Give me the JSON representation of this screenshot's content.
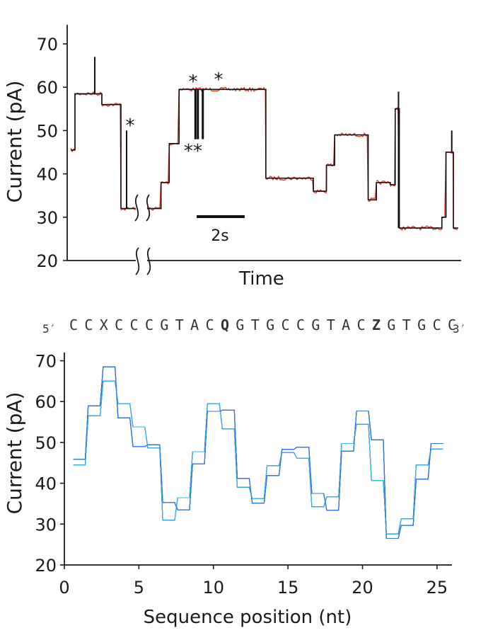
{
  "chart_data": [
    {
      "type": "line",
      "ylabel": "Current (pA)",
      "xlabel": "Time",
      "ylim": [
        20,
        75
      ],
      "yticks": [
        20,
        30,
        40,
        50,
        60,
        70
      ],
      "scale_bar_label": "2s",
      "star_symbol": "*",
      "double_star_symbol": "**",
      "colors": {
        "raw": "#e8392b",
        "fit": "#111111"
      },
      "series": [
        {
          "levels": [
            {
              "t0": 0.0,
              "t1": 0.6,
              "y": 45.5
            },
            {
              "t0": 0.6,
              "t1": 4.4,
              "y": 58.5
            },
            {
              "t0": 4.4,
              "t1": 7.1,
              "y": 56.0
            },
            {
              "t0": 7.1,
              "t1": 9.2,
              "y": 32.0
            },
            {
              "t0": 10.3,
              "t1": 12.0,
              "y": 32.0
            },
            {
              "t0": 12.0,
              "t1": 13.0,
              "y": 38.0
            },
            {
              "t0": 13.0,
              "t1": 14.2,
              "y": 47.0
            },
            {
              "t0": 14.2,
              "t1": 24.8,
              "y": 59.5
            },
            {
              "t0": 24.8,
              "t1": 30.6,
              "y": 39.0
            },
            {
              "t0": 30.6,
              "t1": 32.2,
              "y": 36.0
            },
            {
              "t0": 32.2,
              "t1": 33.2,
              "y": 42.0
            },
            {
              "t0": 33.2,
              "t1": 37.3,
              "y": 49.0
            },
            {
              "t0": 37.3,
              "t1": 38.3,
              "y": 34.0
            },
            {
              "t0": 38.3,
              "t1": 40.0,
              "y": 38.0
            },
            {
              "t0": 40.0,
              "t1": 40.6,
              "y": 37.5
            },
            {
              "t0": 40.6,
              "t1": 41.1,
              "y": 55.0
            },
            {
              "t0": 41.1,
              "t1": 46.3,
              "y": 27.5
            },
            {
              "t0": 46.3,
              "t1": 46.8,
              "y": 30.0
            },
            {
              "t0": 46.8,
              "t1": 47.7,
              "y": 45.0
            },
            {
              "t0": 47.7,
              "t1": 48.3,
              "y": 27.5
            }
          ],
          "spikes": [
            {
              "t": 3.4,
              "y0": 58.5,
              "y1": 67.0
            },
            {
              "t": 7.9,
              "y0": 32.0,
              "y1": 50.0
            },
            {
              "t": 41.0,
              "y0": 27.5,
              "y1": 59.0
            },
            {
              "t": 47.5,
              "y0": 45.0,
              "y1": 50.0
            }
          ],
          "dips": [
            {
              "t": 16.2,
              "y0": 59.5,
              "y1": 48.0
            },
            {
              "t": 16.5,
              "y0": 59.5,
              "y1": 48.0
            },
            {
              "t": 17.1,
              "y0": 59.5,
              "y1": 48.0
            }
          ]
        }
      ]
    },
    {
      "type": "line",
      "ylabel": "Current (pA)",
      "xlabel": "Sequence position (nt)",
      "xlim": [
        0,
        26
      ],
      "ylim": [
        20,
        72
      ],
      "xticks": [
        0,
        5,
        10,
        15,
        20,
        25
      ],
      "yticks": [
        20,
        30,
        40,
        50,
        60,
        70
      ],
      "sequence": {
        "five_prime": "5′",
        "three_prime": "3′",
        "bases": [
          "C",
          "C",
          "X",
          "C",
          "C",
          "C",
          "G",
          "T",
          "A",
          "C",
          "Q",
          "G",
          "T",
          "G",
          "C",
          "C",
          "G",
          "T",
          "A",
          "C",
          "Z",
          "G",
          "T",
          "G",
          "C",
          "C"
        ],
        "highlight_color": "#e02020"
      },
      "colors": {
        "light": "#39c6e8",
        "mid": "#3a78e0",
        "dark": "#1f3fd0"
      },
      "series": [
        {
          "positions": [
            1,
            2,
            3,
            4,
            5,
            6,
            7,
            8,
            9,
            10,
            11,
            12,
            13,
            14,
            15,
            16,
            17,
            18,
            19,
            20,
            21,
            22,
            23,
            24,
            25
          ],
          "level_ranges": [
            [
              44.5,
              47.0
            ],
            [
              55.5,
              60.0
            ],
            [
              62.0,
              68.5
            ],
            [
              55.0,
              61.5
            ],
            [
              45.5,
              54.5
            ],
            [
              48.5,
              50.0
            ],
            [
              28.5,
              36.5
            ],
            [
              33.5,
              39.0
            ],
            [
              43.5,
              49.0
            ],
            [
              56.0,
              59.5
            ],
            [
              52.0,
              60.5
            ],
            [
              37.5,
              41.5
            ],
            [
              35.0,
              37.0
            ],
            [
              40.5,
              45.0
            ],
            [
              47.5,
              49.0
            ],
            [
              45.0,
              50.0
            ],
            [
              31.5,
              37.5
            ],
            [
              32.5,
              38.5
            ],
            [
              46.5,
              50.0
            ],
            [
              54.0,
              60.0
            ],
            [
              35.0,
              53.5
            ],
            [
              26.5,
              28.5
            ],
            [
              29.0,
              32.0
            ],
            [
              38.0,
              44.5
            ],
            [
              48.0,
              50.5
            ]
          ]
        }
      ]
    }
  ]
}
